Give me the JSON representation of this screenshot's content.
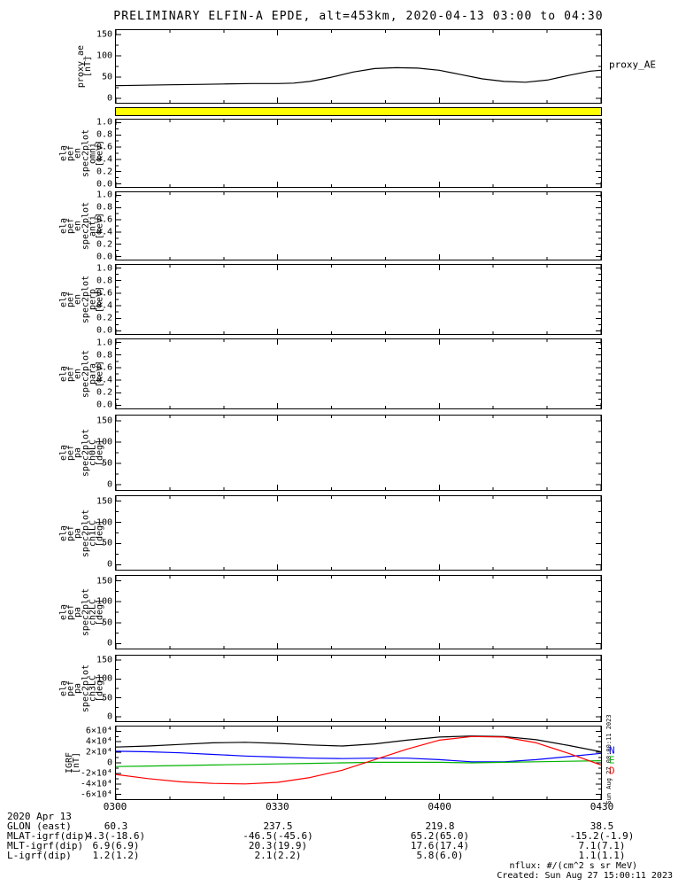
{
  "title": "PRELIMINARY ELFIN-A EPDE, alt=453km, 2020-04-13 03:00 to 04:30",
  "xaxis": {
    "range_minutes": [
      0,
      90
    ],
    "ticks": [
      {
        "t": 0,
        "label": "0300"
      },
      {
        "t": 30,
        "label": "0330"
      },
      {
        "t": 60,
        "label": "0400"
      },
      {
        "t": 90,
        "label": "0430"
      }
    ],
    "minor_step": 10
  },
  "chart_data": [
    {
      "type": "line",
      "name": "proxy-ae",
      "ylabel_lines": [
        "proxy_ae",
        "[nT]"
      ],
      "ylim": [
        -10,
        160
      ],
      "yticks": [
        {
          "v": 0,
          "label": "0"
        },
        {
          "v": 50,
          "label": "50"
        },
        {
          "v": 100,
          "label": "100"
        },
        {
          "v": 150,
          "label": "150"
        }
      ],
      "series": [
        {
          "name": "proxy_AE",
          "color": "#000000",
          "x": [
            0,
            5,
            10,
            15,
            20,
            25,
            30,
            33,
            36,
            40,
            44,
            48,
            52,
            56,
            60,
            64,
            68,
            72,
            76,
            80,
            84,
            88,
            90
          ],
          "y": [
            30,
            31,
            32,
            33,
            34,
            35,
            35,
            36,
            40,
            50,
            62,
            70,
            72,
            71,
            66,
            56,
            46,
            40,
            38,
            43,
            54,
            64,
            66
          ]
        }
      ],
      "right_labels": [
        {
          "text": "proxy_AE",
          "color": "#000000",
          "v": 80
        }
      ]
    },
    {
      "type": "bar-flag",
      "name": "quality-flag-bar",
      "fill": "#ffff00"
    },
    {
      "type": "empty",
      "name": "ela-pef-en-spec2plot-omni",
      "ylabel_lines": [
        "ela",
        "pef",
        "en",
        "spec2plot",
        "omni",
        "[keV]"
      ],
      "ylim": [
        -0.05,
        1.05
      ],
      "yticks": [
        {
          "v": 0.0,
          "label": "0.0"
        },
        {
          "v": 0.2,
          "label": "0.2"
        },
        {
          "v": 0.4,
          "label": "0.4"
        },
        {
          "v": 0.6,
          "label": "0.6"
        },
        {
          "v": 0.8,
          "label": "0.8"
        },
        {
          "v": 1.0,
          "label": "1.0"
        }
      ],
      "series": []
    },
    {
      "type": "empty",
      "name": "ela-pef-en-spec2plot-anti",
      "ylabel_lines": [
        "ela",
        "pef",
        "en",
        "spec2plot",
        "anti",
        "[keV]"
      ],
      "ylim": [
        -0.05,
        1.05
      ],
      "yticks": [
        {
          "v": 0.0,
          "label": "0.0"
        },
        {
          "v": 0.2,
          "label": "0.2"
        },
        {
          "v": 0.4,
          "label": "0.4"
        },
        {
          "v": 0.6,
          "label": "0.6"
        },
        {
          "v": 0.8,
          "label": "0.8"
        },
        {
          "v": 1.0,
          "label": "1.0"
        }
      ],
      "series": []
    },
    {
      "type": "empty",
      "name": "ela-pef-en-spec2plot-perp",
      "ylabel_lines": [
        "ela",
        "pef",
        "en",
        "spec2plot",
        "perp",
        "[keV]"
      ],
      "ylim": [
        -0.05,
        1.05
      ],
      "yticks": [
        {
          "v": 0.0,
          "label": "0.0"
        },
        {
          "v": 0.2,
          "label": "0.2"
        },
        {
          "v": 0.4,
          "label": "0.4"
        },
        {
          "v": 0.6,
          "label": "0.6"
        },
        {
          "v": 0.8,
          "label": "0.8"
        },
        {
          "v": 1.0,
          "label": "1.0"
        }
      ],
      "series": []
    },
    {
      "type": "empty",
      "name": "ela-pef-en-spec2plot-para",
      "ylabel_lines": [
        "ela",
        "pef",
        "en",
        "spec2plot",
        "para",
        "[keV]"
      ],
      "ylim": [
        -0.05,
        1.05
      ],
      "yticks": [
        {
          "v": 0.0,
          "label": "0.0"
        },
        {
          "v": 0.2,
          "label": "0.2"
        },
        {
          "v": 0.4,
          "label": "0.4"
        },
        {
          "v": 0.6,
          "label": "0.6"
        },
        {
          "v": 0.8,
          "label": "0.8"
        },
        {
          "v": 1.0,
          "label": "1.0"
        }
      ],
      "series": []
    },
    {
      "type": "empty",
      "name": "ela-pef-pa-spec2plot-ch0LC",
      "ylabel_lines": [
        "ela",
        "pef",
        "pa",
        "spec2plot",
        "ch0LC",
        "[deg]"
      ],
      "ylim": [
        -12,
        162
      ],
      "yticks": [
        {
          "v": 0,
          "label": "0"
        },
        {
          "v": 50,
          "label": "50"
        },
        {
          "v": 100,
          "label": "100"
        },
        {
          "v": 150,
          "label": "150"
        }
      ],
      "series": []
    },
    {
      "type": "empty",
      "name": "ela-pef-pa-spec2plot-ch1LC",
      "ylabel_lines": [
        "ela",
        "pef",
        "pa",
        "spec2plot",
        "ch1LC",
        "[deg]"
      ],
      "ylim": [
        -12,
        162
      ],
      "yticks": [
        {
          "v": 0,
          "label": "0"
        },
        {
          "v": 50,
          "label": "50"
        },
        {
          "v": 100,
          "label": "100"
        },
        {
          "v": 150,
          "label": "150"
        }
      ],
      "series": []
    },
    {
      "type": "empty",
      "name": "ela-pef-pa-spec2plot-ch2LC",
      "ylabel_lines": [
        "ela",
        "pef",
        "pa",
        "spec2plot",
        "ch2LC",
        "[deg]"
      ],
      "ylim": [
        -12,
        162
      ],
      "yticks": [
        {
          "v": 0,
          "label": "0"
        },
        {
          "v": 50,
          "label": "50"
        },
        {
          "v": 100,
          "label": "100"
        },
        {
          "v": 150,
          "label": "150"
        }
      ],
      "series": []
    },
    {
      "type": "empty",
      "name": "ela-pef-pa-spec2plot-ch3LC",
      "ylabel_lines": [
        "ela",
        "pef",
        "pa",
        "spec2plot",
        "ch3LC",
        "[deg]"
      ],
      "ylim": [
        -12,
        162
      ],
      "yticks": [
        {
          "v": 0,
          "label": "0"
        },
        {
          "v": 50,
          "label": "50"
        },
        {
          "v": 100,
          "label": "100"
        },
        {
          "v": 150,
          "label": "150"
        }
      ],
      "series": []
    },
    {
      "type": "line",
      "name": "igrf",
      "ylabel_lines": [
        "IGRF",
        "[nT]"
      ],
      "ylim": [
        -6.9,
        6.9
      ],
      "y_scale_note": "values in 10^4 nT",
      "yticks": [
        {
          "v": -6,
          "label": "-6×10⁴"
        },
        {
          "v": -4,
          "label": "-4×10⁴"
        },
        {
          "v": -2,
          "label": "-2×10⁴"
        },
        {
          "v": 0,
          "label": "0"
        },
        {
          "v": 2,
          "label": "2×10⁴"
        },
        {
          "v": 4,
          "label": "4×10⁴"
        },
        {
          "v": 6,
          "label": "6×10⁴"
        }
      ],
      "series": [
        {
          "name": "B_total",
          "color": "#000000",
          "x": [
            0,
            6,
            12,
            18,
            24,
            30,
            36,
            42,
            48,
            54,
            60,
            66,
            72,
            78,
            84,
            90
          ],
          "y": [
            3.0,
            3.2,
            3.5,
            3.8,
            3.9,
            3.7,
            3.4,
            3.2,
            3.6,
            4.3,
            4.9,
            5.1,
            5.0,
            4.4,
            3.3,
            2.1
          ]
        },
        {
          "name": "N",
          "color": "#0000ff",
          "x": [
            0,
            6,
            12,
            18,
            24,
            30,
            36,
            42,
            48,
            54,
            60,
            66,
            72,
            78,
            84,
            90
          ],
          "y": [
            2.2,
            2.1,
            1.9,
            1.6,
            1.3,
            1.1,
            0.9,
            0.8,
            0.9,
            0.9,
            0.6,
            0.2,
            0.2,
            0.6,
            1.2,
            1.8
          ]
        },
        {
          "name": "E",
          "color": "#00b300",
          "x": [
            0,
            6,
            12,
            18,
            24,
            30,
            36,
            42,
            48,
            54,
            60,
            66,
            72,
            78,
            84,
            90
          ],
          "y": [
            -0.7,
            -0.6,
            -0.5,
            -0.4,
            -0.3,
            -0.2,
            -0.1,
            0.0,
            0.1,
            0.1,
            0.1,
            0.0,
            0.1,
            0.2,
            0.3,
            0.4
          ]
        },
        {
          "name": "D",
          "color": "#ff0000",
          "x": [
            0,
            6,
            12,
            18,
            24,
            30,
            36,
            42,
            48,
            54,
            60,
            66,
            72,
            78,
            84,
            90
          ],
          "y": [
            -2.2,
            -3.0,
            -3.6,
            -3.9,
            -4.0,
            -3.7,
            -2.8,
            -1.4,
            0.6,
            2.6,
            4.3,
            5.0,
            4.9,
            3.8,
            1.8,
            -0.4
          ]
        }
      ],
      "right_labels": [
        {
          "text": "N",
          "color": "#0000ff",
          "v": 2.3
        },
        {
          "text": "E",
          "color": "#00b300",
          "v": 0.5
        },
        {
          "text": "D",
          "color": "#ff0000",
          "v": -1.5
        }
      ]
    }
  ],
  "footer": {
    "date": "2020 Apr 13",
    "rows": [
      {
        "label": "GLON (east)",
        "values": [
          "60.3",
          "237.5",
          "219.8",
          "38.5"
        ]
      },
      {
        "label": "MLAT-igrf(dip)",
        "values": [
          "4.3(-18.6)",
          "-46.5(-45.6)",
          "65.2(65.0)",
          "-15.2(-1.9)"
        ]
      },
      {
        "label": "MLT-igrf(dip)",
        "values": [
          "6.9(6.9)",
          "20.3(19.9)",
          "17.6(17.4)",
          "7.1(7.1)"
        ]
      },
      {
        "label": "L-igrf(dip)",
        "values": [
          "1.2(1.2)",
          "2.1(2.2)",
          "5.8(6.0)",
          "1.1(1.1)"
        ]
      }
    ]
  },
  "notes": {
    "nflux": "nflux: #/(cm^2 s sr MeV)",
    "created": "Created: Sun Aug 27 15:00:11 2023",
    "side": "Sun Aug 27 08:00:11 2023"
  }
}
